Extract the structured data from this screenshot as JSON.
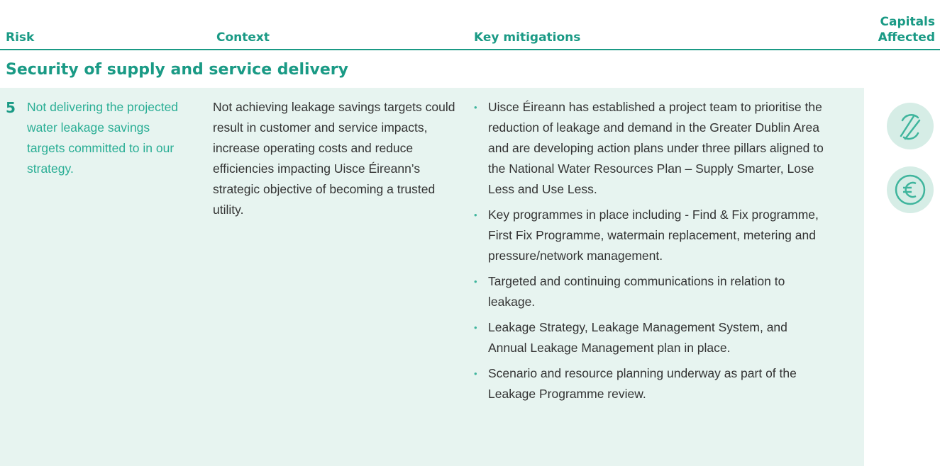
{
  "header": {
    "columns": [
      "Risk",
      "Context",
      "Key mitigations",
      "Capitals Affected"
    ]
  },
  "section": {
    "title": "Security of supply and service delivery"
  },
  "rows": [
    {
      "number": "5",
      "risk": "Not delivering the projected water leakage savings targets committed to in our strategy.",
      "context": "Not achieving leakage savings targets could result in customer and service impacts, increase operating costs and reduce efficiencies impacting Uisce Éireann’s strategic objective of becoming a trusted utility.",
      "mitigations": [
        "Uisce Éireann has established a project team to prioritise the reduction of leakage and demand in the Greater Dublin Area and are developing action plans under three pillars aligned to the National Water Resources Plan – Supply Smarter, Lose Less and Use Less.",
        "Key programmes in place including - Find & Fix programme, First Fix Programme, watermain replacement, metering and pressure/network management.",
        "Targeted and continuing communications in relation to leakage.",
        "Leakage Strategy, Leakage Management System, and Annual Leakage Management plan in place.",
        "Scenario and resource planning underway as part of the Leakage Programme review."
      ]
    }
  ]
}
